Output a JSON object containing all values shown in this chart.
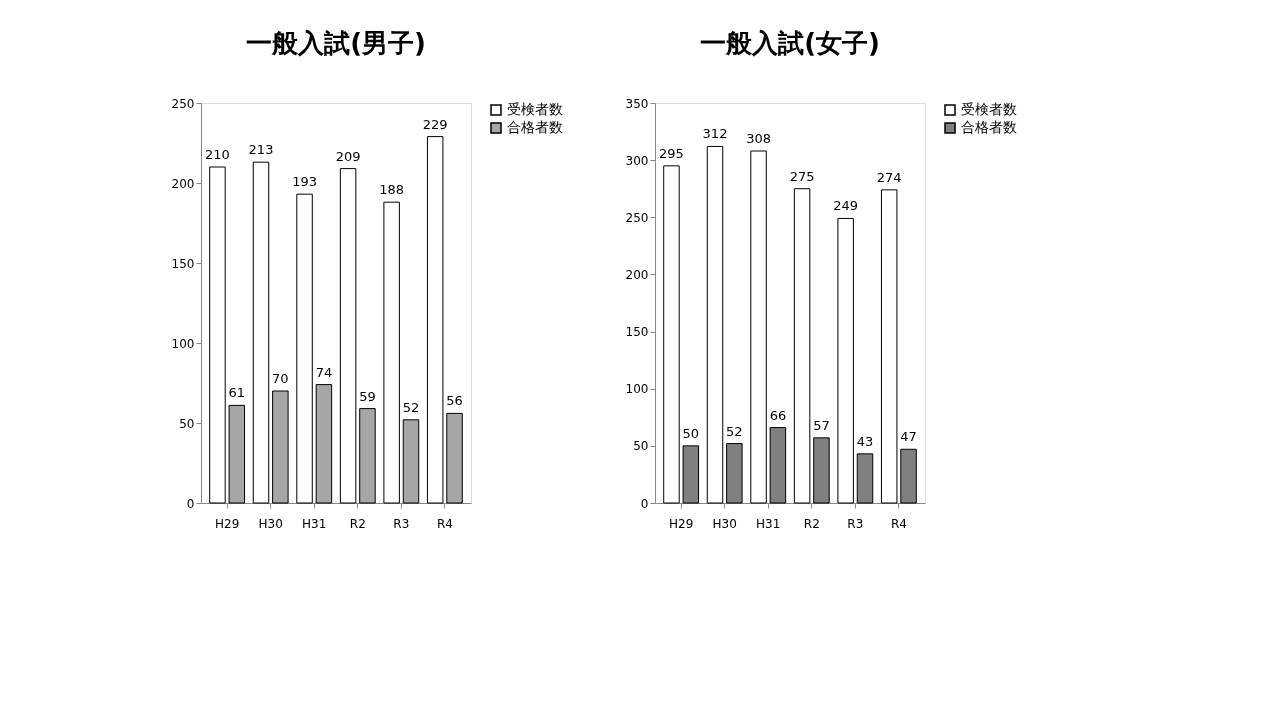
{
  "chart_data": [
    {
      "type": "bar",
      "title": "一般入試(男子)",
      "categories": [
        "H29",
        "H30",
        "H31",
        "R2",
        "R3",
        "R4"
      ],
      "series": [
        {
          "name": "受検者数",
          "color": "#ffffff",
          "values": [
            210,
            213,
            193,
            209,
            188,
            229
          ]
        },
        {
          "name": "合格者数",
          "color": "#a6a6a6",
          "values": [
            61,
            70,
            74,
            59,
            52,
            56
          ]
        }
      ],
      "ylim": [
        0,
        250
      ],
      "yticks": [
        0,
        50,
        100,
        150,
        200,
        250
      ],
      "data_labels": true,
      "legend": "right",
      "grid": false
    },
    {
      "type": "bar",
      "title": "一般入試(女子)",
      "categories": [
        "H29",
        "H30",
        "H31",
        "R2",
        "R3",
        "R4"
      ],
      "series": [
        {
          "name": "受検者数",
          "color": "#ffffff",
          "values": [
            295,
            312,
            308,
            275,
            249,
            274
          ]
        },
        {
          "name": "合格者数",
          "color": "#808080",
          "values": [
            50,
            52,
            66,
            57,
            43,
            47
          ]
        }
      ],
      "ylim": [
        0,
        350
      ],
      "yticks": [
        0,
        50,
        100,
        150,
        200,
        250,
        300,
        350
      ],
      "data_labels": true,
      "legend": "right",
      "grid": false
    }
  ]
}
